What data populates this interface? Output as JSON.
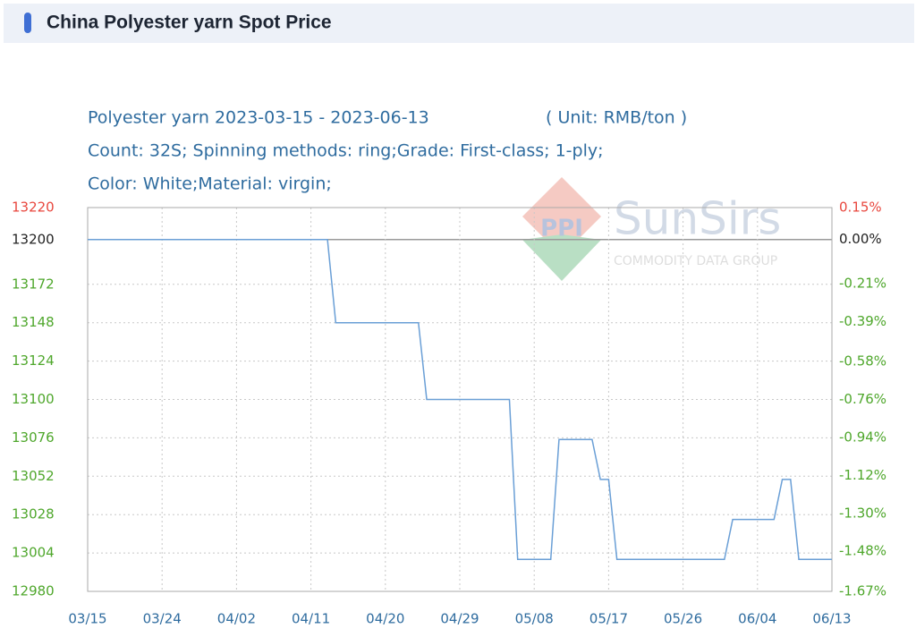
{
  "header": {
    "title": "China Polyester yarn Spot Price"
  },
  "watermark": {
    "logo": "PPI",
    "brand": "SunSirs",
    "tagline": "COMMODITY DATA GROUP"
  },
  "chart_data": {
    "type": "line",
    "title": "Polyester yarn 2023-03-15 - 2023-06-13",
    "unit": "( Unit: RMB/ton )",
    "subtitle": [
      "Count: 32S; Spinning methods: ring;Grade: First-class; 1-ply;",
      "Color: White;Material: virgin;"
    ],
    "x": [
      "03/15",
      "03/16",
      "03/17",
      "03/18",
      "03/19",
      "03/20",
      "03/21",
      "03/22",
      "03/23",
      "03/24",
      "03/25",
      "03/26",
      "03/27",
      "03/28",
      "03/29",
      "03/30",
      "03/31",
      "04/01",
      "04/02",
      "04/03",
      "04/04",
      "04/05",
      "04/06",
      "04/07",
      "04/08",
      "04/09",
      "04/10",
      "04/11",
      "04/12",
      "04/13",
      "04/14",
      "04/15",
      "04/16",
      "04/17",
      "04/18",
      "04/19",
      "04/20",
      "04/21",
      "04/22",
      "04/23",
      "04/24",
      "04/25",
      "04/26",
      "04/27",
      "04/28",
      "04/29",
      "04/30",
      "05/01",
      "05/02",
      "05/03",
      "05/04",
      "05/05",
      "05/06",
      "05/07",
      "05/08",
      "05/09",
      "05/10",
      "05/11",
      "05/12",
      "05/13",
      "05/14",
      "05/15",
      "05/16",
      "05/17",
      "05/18",
      "05/19",
      "05/20",
      "05/21",
      "05/22",
      "05/23",
      "05/24",
      "05/25",
      "05/26",
      "05/27",
      "05/28",
      "05/29",
      "05/30",
      "05/31",
      "06/01",
      "06/02",
      "06/03",
      "06/04",
      "06/05",
      "06/06",
      "06/07",
      "06/08",
      "06/09",
      "06/10",
      "06/11",
      "06/12",
      "06/13"
    ],
    "series": [
      {
        "name": "Polyester yarn",
        "color": "#6a9fd6",
        "values": [
          13200,
          13200,
          13200,
          13200,
          13200,
          13200,
          13200,
          13200,
          13200,
          13200,
          13200,
          13200,
          13200,
          13200,
          13200,
          13200,
          13200,
          13200,
          13200,
          13200,
          13200,
          13200,
          13200,
          13200,
          13200,
          13200,
          13200,
          13200,
          13200,
          13200,
          13148,
          13148,
          13148,
          13148,
          13148,
          13148,
          13148,
          13148,
          13148,
          13148,
          13148,
          13100,
          13100,
          13100,
          13100,
          13100,
          13100,
          13100,
          13100,
          13100,
          13100,
          13100,
          13000,
          13000,
          13000,
          13000,
          13000,
          13075,
          13075,
          13075,
          13075,
          13075,
          13050,
          13050,
          13000,
          13000,
          13000,
          13000,
          13000,
          13000,
          13000,
          13000,
          13000,
          13000,
          13000,
          13000,
          13000,
          13000,
          13025,
          13025,
          13025,
          13025,
          13025,
          13025,
          13050,
          13050,
          13000,
          13000,
          13000,
          13000,
          13000
        ]
      }
    ],
    "xticks": [
      "03/15",
      "03/24",
      "04/02",
      "04/11",
      "04/20",
      "04/29",
      "05/08",
      "05/17",
      "05/26",
      "06/04",
      "06/13"
    ],
    "ylim": [
      12980,
      13220
    ],
    "yticks": [
      12980,
      13004,
      13028,
      13052,
      13076,
      13100,
      13124,
      13148,
      13172,
      13200,
      13220
    ],
    "y2lim": [
      -1.67,
      0.15
    ],
    "y2ticks": [
      {
        "value": -1.67,
        "label": "-1.67%"
      },
      {
        "value": -1.48,
        "label": "-1.48%"
      },
      {
        "value": -1.3,
        "label": "-1.30%"
      },
      {
        "value": -1.12,
        "label": "-1.12%"
      },
      {
        "value": -0.94,
        "label": "-0.94%"
      },
      {
        "value": -0.76,
        "label": "-0.76%"
      },
      {
        "value": -0.58,
        "label": "-0.58%"
      },
      {
        "value": -0.39,
        "label": "-0.39%"
      },
      {
        "value": -0.21,
        "label": "-0.21%"
      },
      {
        "value": 0.0,
        "label": "0.00%"
      },
      {
        "value": 0.15,
        "label": "0.15%"
      }
    ],
    "baseline": 13200,
    "tick_colors": {
      "up": "#e8473e",
      "flat": "#222222",
      "down": "#4fa72c"
    },
    "grid": true
  }
}
